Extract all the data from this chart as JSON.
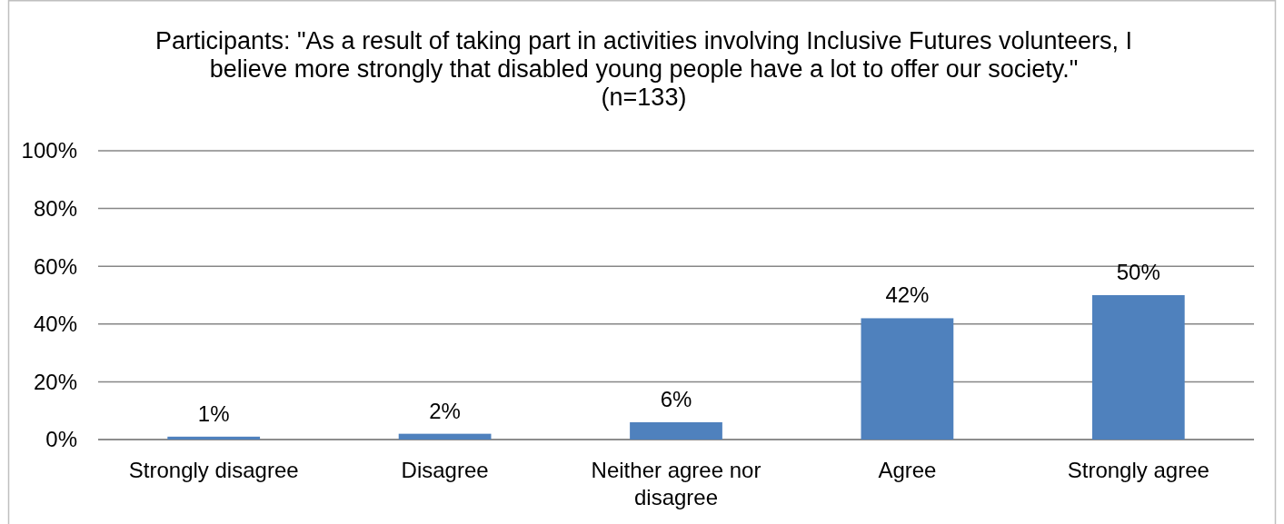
{
  "chart_data": {
    "type": "bar",
    "title": "Participants: \"As a result of taking part in activities involving Inclusive Futures volunteers, I believe more strongly that disabled young people have a lot to offer our society.\"",
    "subtitle": "(n=133)",
    "categories": [
      "Strongly disagree",
      "Disagree",
      "Neither agree nor disagree",
      "Agree",
      "Strongly agree"
    ],
    "values": [
      1,
      2,
      6,
      42,
      50
    ],
    "value_labels": [
      "1%",
      "2%",
      "6%",
      "42%",
      "50%"
    ],
    "color": "#4f81bd",
    "ylim": [
      0,
      100
    ],
    "yticks": [
      {
        "value": 0,
        "label": "0%"
      },
      {
        "value": 20,
        "label": "20%"
      },
      {
        "value": 40,
        "label": "40%"
      },
      {
        "value": 60,
        "label": "60%"
      },
      {
        "value": 80,
        "label": "80%"
      },
      {
        "value": 100,
        "label": "100%"
      }
    ],
    "grid": "y"
  }
}
